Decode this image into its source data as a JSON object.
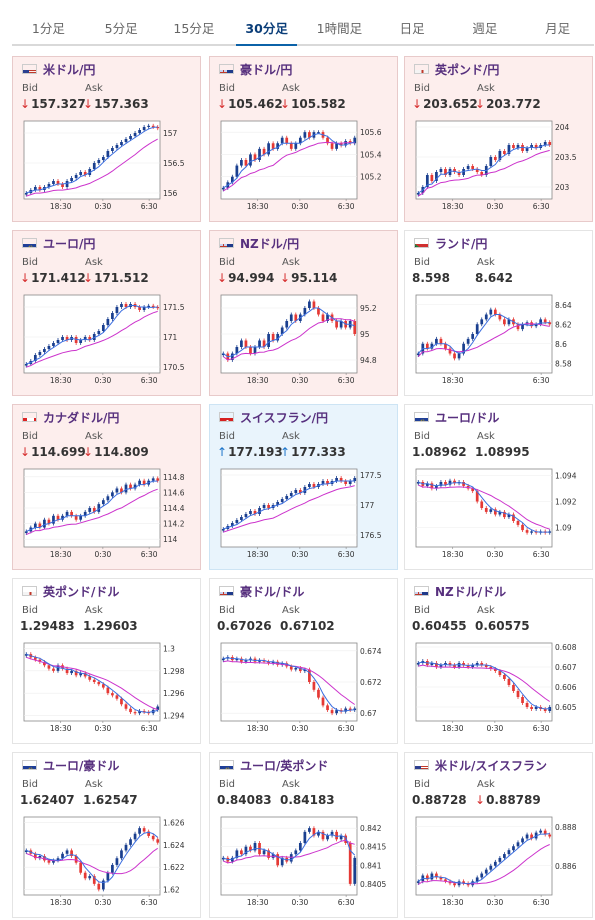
{
  "tabs": [
    "1分足",
    "5分足",
    "15分足",
    "30分足",
    "1時間足",
    "日足",
    "週足",
    "月足"
  ],
  "active_tab": 3,
  "labels": {
    "bid": "Bid",
    "ask": "Ask"
  },
  "colors": {
    "up_candle": "#1a3f8f",
    "down_candle": "#e53935",
    "ma_short": "#3b6ee0",
    "ma_long": "#cc33cc",
    "title": "#57307e"
  },
  "cards": [
    {
      "name": "米ドル/円",
      "flag": "us",
      "bid": "157.327",
      "ask": "157.363",
      "bid_dir": "down",
      "ask_dir": "down",
      "bg": "down",
      "chart": {
        "y_range": [
          155.9,
          157.2
        ],
        "y_ticks": [
          "157",
          "156.5",
          "156"
        ],
        "y_tick_values": [
          157,
          156.5,
          156
        ],
        "x_ticks": [
          "18:30",
          "0:30",
          "6:30"
        ],
        "closes": [
          156.0,
          156.05,
          156.1,
          156.05,
          156.1,
          156.15,
          156.2,
          156.15,
          156.1,
          156.2,
          156.25,
          156.3,
          156.35,
          156.3,
          156.4,
          156.5,
          156.55,
          156.6,
          156.7,
          156.75,
          156.8,
          156.85,
          156.9,
          156.95,
          157.0,
          157.05,
          157.1,
          157.12,
          157.1,
          157.08
        ]
      }
    },
    {
      "name": "豪ドル/円",
      "flag": "au",
      "bid": "105.462",
      "ask": "105.582",
      "bid_dir": "down",
      "ask_dir": "down",
      "bg": "down",
      "chart": {
        "y_range": [
          105.0,
          105.7
        ],
        "y_ticks": [
          "105.6",
          "105.4",
          "105.2"
        ],
        "y_tick_values": [
          105.6,
          105.4,
          105.2
        ],
        "x_ticks": [
          "18:30",
          "0:30",
          "6:30"
        ],
        "closes": [
          105.1,
          105.15,
          105.2,
          105.3,
          105.35,
          105.3,
          105.4,
          105.35,
          105.45,
          105.4,
          105.5,
          105.45,
          105.5,
          105.55,
          105.5,
          105.45,
          105.5,
          105.55,
          105.6,
          105.55,
          105.6,
          105.6,
          105.55,
          105.5,
          105.45,
          105.5,
          105.48,
          105.52,
          105.5,
          105.55
        ]
      }
    },
    {
      "name": "英ポンド/円",
      "flag": "gb",
      "bid": "203.652",
      "ask": "203.772",
      "bid_dir": "down",
      "ask_dir": "down",
      "bg": "down",
      "chart": {
        "y_range": [
          202.8,
          204.1
        ],
        "y_ticks": [
          "204",
          "203.5",
          "203"
        ],
        "y_tick_values": [
          204,
          203.5,
          203
        ],
        "x_ticks": [
          "18:30",
          "0:30",
          "6:30"
        ],
        "closes": [
          202.9,
          203.0,
          203.2,
          203.1,
          203.25,
          203.3,
          203.2,
          203.3,
          203.25,
          203.2,
          203.3,
          203.35,
          203.3,
          203.25,
          203.2,
          203.35,
          203.5,
          203.45,
          203.6,
          203.55,
          203.7,
          203.65,
          203.7,
          203.6,
          203.65,
          203.7,
          203.65,
          203.7,
          203.75,
          203.7
        ]
      }
    },
    {
      "name": "ユーロ/円",
      "flag": "eu",
      "bid": "171.412",
      "ask": "171.512",
      "bid_dir": "down",
      "ask_dir": "down",
      "bg": "down",
      "chart": {
        "y_range": [
          170.4,
          171.7
        ],
        "y_ticks": [
          "171.5",
          "171",
          "170.5"
        ],
        "y_tick_values": [
          171.5,
          171,
          170.5
        ],
        "x_ticks": [
          "18:30",
          "0:30",
          "6:30"
        ],
        "closes": [
          170.55,
          170.6,
          170.7,
          170.75,
          170.8,
          170.85,
          170.9,
          170.95,
          171.0,
          170.95,
          171.0,
          170.9,
          170.95,
          171.0,
          170.95,
          171.05,
          171.1,
          171.2,
          171.3,
          171.4,
          171.5,
          171.55,
          171.5,
          171.55,
          171.5,
          171.45,
          171.5,
          171.52,
          171.5,
          171.48
        ]
      }
    },
    {
      "name": "NZドル/円",
      "flag": "nz",
      "bid": "94.994",
      "ask": "95.114",
      "bid_dir": "down",
      "ask_dir": "down",
      "bg": "down",
      "chart": {
        "y_range": [
          94.7,
          95.3
        ],
        "y_ticks": [
          "95.2",
          "95",
          "94.8"
        ],
        "y_tick_values": [
          95.2,
          95,
          94.8
        ],
        "x_ticks": [
          "18:30",
          "0:30",
          "6:30"
        ],
        "closes": [
          94.85,
          94.8,
          94.85,
          94.9,
          94.95,
          94.9,
          94.85,
          94.9,
          94.95,
          94.9,
          95.0,
          94.95,
          95.0,
          95.05,
          95.1,
          95.15,
          95.1,
          95.15,
          95.2,
          95.25,
          95.2,
          95.15,
          95.1,
          95.15,
          95.1,
          95.05,
          95.1,
          95.05,
          95.1,
          95.0
        ]
      }
    },
    {
      "name": "ランド/円",
      "flag": "za",
      "bid": "8.598",
      "ask": "8.642",
      "bid_dir": "none",
      "ask_dir": "none",
      "bg": "plain",
      "chart": {
        "y_range": [
          8.57,
          8.65
        ],
        "y_ticks": [
          "8.64",
          "8.62",
          "8.6",
          "8.58"
        ],
        "y_tick_values": [
          8.64,
          8.62,
          8.6,
          8.58
        ],
        "x_ticks": [
          "18:30",
          "6:30"
        ],
        "closes": [
          8.59,
          8.6,
          8.595,
          8.6,
          8.605,
          8.6,
          8.595,
          8.59,
          8.585,
          8.59,
          8.6,
          8.605,
          8.61,
          8.62,
          8.625,
          8.63,
          8.635,
          8.63,
          8.625,
          8.62,
          8.625,
          8.62,
          8.615,
          8.62,
          8.622,
          8.618,
          8.62,
          8.625,
          8.622,
          8.62
        ]
      }
    },
    {
      "name": "カナダドル/円",
      "flag": "ca",
      "bid": "114.699",
      "ask": "114.809",
      "bid_dir": "down",
      "ask_dir": "down",
      "bg": "down",
      "chart": {
        "y_range": [
          113.9,
          114.9
        ],
        "y_ticks": [
          "114.8",
          "114.6",
          "114.4",
          "114.2",
          "114"
        ],
        "y_tick_values": [
          114.8,
          114.6,
          114.4,
          114.2,
          114
        ],
        "x_ticks": [
          "18:30",
          "0:30",
          "6:30"
        ],
        "closes": [
          114.1,
          114.15,
          114.2,
          114.15,
          114.25,
          114.2,
          114.3,
          114.25,
          114.3,
          114.35,
          114.3,
          114.25,
          114.3,
          114.35,
          114.4,
          114.35,
          114.45,
          114.5,
          114.55,
          114.6,
          114.65,
          114.6,
          114.7,
          114.65,
          114.7,
          114.75,
          114.7,
          114.75,
          114.78,
          114.75
        ]
      }
    },
    {
      "name": "スイスフラン/円",
      "flag": "ch",
      "bid": "177.193",
      "ask": "177.333",
      "bid_dir": "up",
      "ask_dir": "up",
      "bg": "up",
      "chart": {
        "y_range": [
          176.3,
          177.6
        ],
        "y_ticks": [
          "177.5",
          "177",
          "176.5"
        ],
        "y_tick_values": [
          177.5,
          177,
          176.5
        ],
        "x_ticks": [
          "18:30",
          "0:30",
          "6:30"
        ],
        "closes": [
          176.6,
          176.65,
          176.7,
          176.75,
          176.8,
          176.85,
          176.9,
          176.85,
          176.95,
          177.0,
          176.95,
          177.0,
          177.05,
          177.1,
          177.15,
          177.2,
          177.25,
          177.2,
          177.3,
          177.35,
          177.3,
          177.35,
          177.4,
          177.35,
          177.4,
          177.45,
          177.4,
          177.35,
          177.4,
          177.45
        ]
      }
    },
    {
      "name": "ユーロ/ドル",
      "flag": "eu",
      "bid": "1.08962",
      "ask": "1.08995",
      "bid_dir": "none",
      "ask_dir": "none",
      "bg": "plain",
      "chart": {
        "y_range": [
          1.0885,
          1.0945
        ],
        "y_ticks": [
          "1.094",
          "1.092",
          "1.09"
        ],
        "y_tick_values": [
          1.094,
          1.092,
          1.09
        ],
        "x_ticks": [
          "18:30",
          "0:30",
          "6:30"
        ],
        "closes": [
          1.0935,
          1.0932,
          1.0934,
          1.093,
          1.0932,
          1.0935,
          1.0933,
          1.0936,
          1.0934,
          1.0935,
          1.0932,
          1.093,
          1.0928,
          1.092,
          1.0915,
          1.0912,
          1.0914,
          1.091,
          1.0912,
          1.0908,
          1.091,
          1.0905,
          1.0902,
          1.0898,
          1.0896,
          1.0897,
          1.0896,
          1.0897,
          1.0896,
          1.0897
        ]
      }
    },
    {
      "name": "英ポンド/ドル",
      "flag": "gb",
      "bid": "1.29483",
      "ask": "1.29603",
      "bid_dir": "none",
      "ask_dir": "none",
      "bg": "plain",
      "chart": {
        "y_range": [
          1.2935,
          1.3005
        ],
        "y_ticks": [
          "1.3",
          "1.298",
          "1.296",
          "1.294"
        ],
        "y_tick_values": [
          1.3,
          1.298,
          1.296,
          1.294
        ],
        "x_ticks": [
          "18:30",
          "0:30",
          "6:30"
        ],
        "closes": [
          1.2995,
          1.2992,
          1.299,
          1.2988,
          1.2985,
          1.2982,
          1.298,
          1.2985,
          1.2982,
          1.2978,
          1.298,
          1.2976,
          1.2978,
          1.2975,
          1.2972,
          1.297,
          1.2968,
          1.2965,
          1.296,
          1.2958,
          1.2955,
          1.295,
          1.2946,
          1.2943,
          1.2942,
          1.2944,
          1.2943,
          1.2942,
          1.2945,
          1.2948
        ]
      }
    },
    {
      "name": "豪ドル/ドル",
      "flag": "au",
      "bid": "0.67026",
      "ask": "0.67102",
      "bid_dir": "none",
      "ask_dir": "none",
      "bg": "plain",
      "chart": {
        "y_range": [
          0.6695,
          0.6745
        ],
        "y_ticks": [
          "0.674",
          "0.672",
          "0.67"
        ],
        "y_tick_values": [
          0.674,
          0.672,
          0.67
        ],
        "x_ticks": [
          "18:30",
          "0:30",
          "6:30"
        ],
        "closes": [
          0.6735,
          0.6736,
          0.6734,
          0.6735,
          0.6733,
          0.6734,
          0.6735,
          0.6733,
          0.6734,
          0.6733,
          0.6732,
          0.6733,
          0.6731,
          0.6732,
          0.673,
          0.6728,
          0.6729,
          0.6727,
          0.6728,
          0.672,
          0.6715,
          0.671,
          0.6705,
          0.6702,
          0.67,
          0.6702,
          0.6701,
          0.6703,
          0.6702,
          0.6703
        ]
      }
    },
    {
      "name": "NZドル/ドル",
      "flag": "nz",
      "bid": "0.60455",
      "ask": "0.60575",
      "bid_dir": "none",
      "ask_dir": "none",
      "bg": "plain",
      "chart": {
        "y_range": [
          0.6043,
          0.6082
        ],
        "y_ticks": [
          "0.608",
          "0.607",
          "0.606",
          "0.605"
        ],
        "y_tick_values": [
          0.608,
          0.607,
          0.606,
          0.605
        ],
        "x_ticks": [
          "18:30",
          "0:30",
          "6:30"
        ],
        "closes": [
          0.6072,
          0.6073,
          0.6071,
          0.6072,
          0.607,
          0.6071,
          0.6072,
          0.6071,
          0.607,
          0.6072,
          0.6071,
          0.607,
          0.6071,
          0.6072,
          0.6071,
          0.607,
          0.6069,
          0.6068,
          0.6066,
          0.6064,
          0.6061,
          0.6058,
          0.6055,
          0.6052,
          0.605,
          0.6049,
          0.605,
          0.6049,
          0.6048,
          0.605
        ]
      }
    },
    {
      "name": "ユーロ/豪ドル",
      "flag": "eu",
      "bid": "1.62407",
      "ask": "1.62547",
      "bid_dir": "none",
      "ask_dir": "none",
      "bg": "plain",
      "chart": {
        "y_range": [
          1.6195,
          1.6265
        ],
        "y_ticks": [
          "1.626",
          "1.624",
          "1.622",
          "1.62"
        ],
        "y_tick_values": [
          1.626,
          1.624,
          1.622,
          1.62
        ],
        "x_ticks": [
          "18:30",
          "0:30",
          "6:30"
        ],
        "closes": [
          1.6235,
          1.6232,
          1.6228,
          1.623,
          1.6226,
          1.6224,
          1.6226,
          1.6228,
          1.6232,
          1.6235,
          1.623,
          1.6224,
          1.6215,
          1.621,
          1.6212,
          1.6205,
          1.62,
          1.6208,
          1.6215,
          1.6222,
          1.6228,
          1.6235,
          1.624,
          1.6245,
          1.625,
          1.6255,
          1.6252,
          1.6248,
          1.6245,
          1.6242
        ]
      }
    },
    {
      "name": "ユーロ/英ポンド",
      "flag": "eu",
      "bid": "0.84083",
      "ask": "0.84183",
      "bid_dir": "none",
      "ask_dir": "none",
      "bg": "plain",
      "chart": {
        "y_range": [
          0.8402,
          0.8423
        ],
        "y_ticks": [
          "0.842",
          "0.8415",
          "0.841",
          "0.8405"
        ],
        "y_tick_values": [
          0.842,
          0.8415,
          0.841,
          0.8405
        ],
        "x_ticks": [
          "18:30",
          "0:30",
          "6:30"
        ],
        "closes": [
          0.8412,
          0.8411,
          0.8412,
          0.8414,
          0.8413,
          0.8415,
          0.8414,
          0.8416,
          0.8413,
          0.8414,
          0.8412,
          0.8413,
          0.841,
          0.8412,
          0.8411,
          0.8413,
          0.8414,
          0.8416,
          0.8419,
          0.842,
          0.8418,
          0.8419,
          0.8417,
          0.8418,
          0.8419,
          0.8417,
          0.8418,
          0.8416,
          0.8405,
          0.8412
        ]
      }
    },
    {
      "name": "米ドル/スイスフラン",
      "flag": "us",
      "bid": "0.88728",
      "ask": "0.88789",
      "bid_dir": "none",
      "ask_dir": "down",
      "bg": "plain",
      "chart": {
        "y_range": [
          0.8845,
          0.8885
        ],
        "y_ticks": [
          "0.888",
          "0.886",
          "0.884"
        ],
        "y_tick_values": [
          0.888,
          0.886,
          0.884
        ],
        "x_ticks": [
          "18:30",
          "0:30",
          "6:30"
        ],
        "closes": [
          0.8852,
          0.8855,
          0.8853,
          0.8856,
          0.8854,
          0.8853,
          0.8852,
          0.8851,
          0.885,
          0.8852,
          0.8851,
          0.885,
          0.8852,
          0.8854,
          0.8856,
          0.8858,
          0.886,
          0.8862,
          0.8864,
          0.8866,
          0.8868,
          0.887,
          0.8872,
          0.8874,
          0.8876,
          0.8874,
          0.8877,
          0.8878,
          0.8876,
          0.8875
        ]
      }
    }
  ]
}
